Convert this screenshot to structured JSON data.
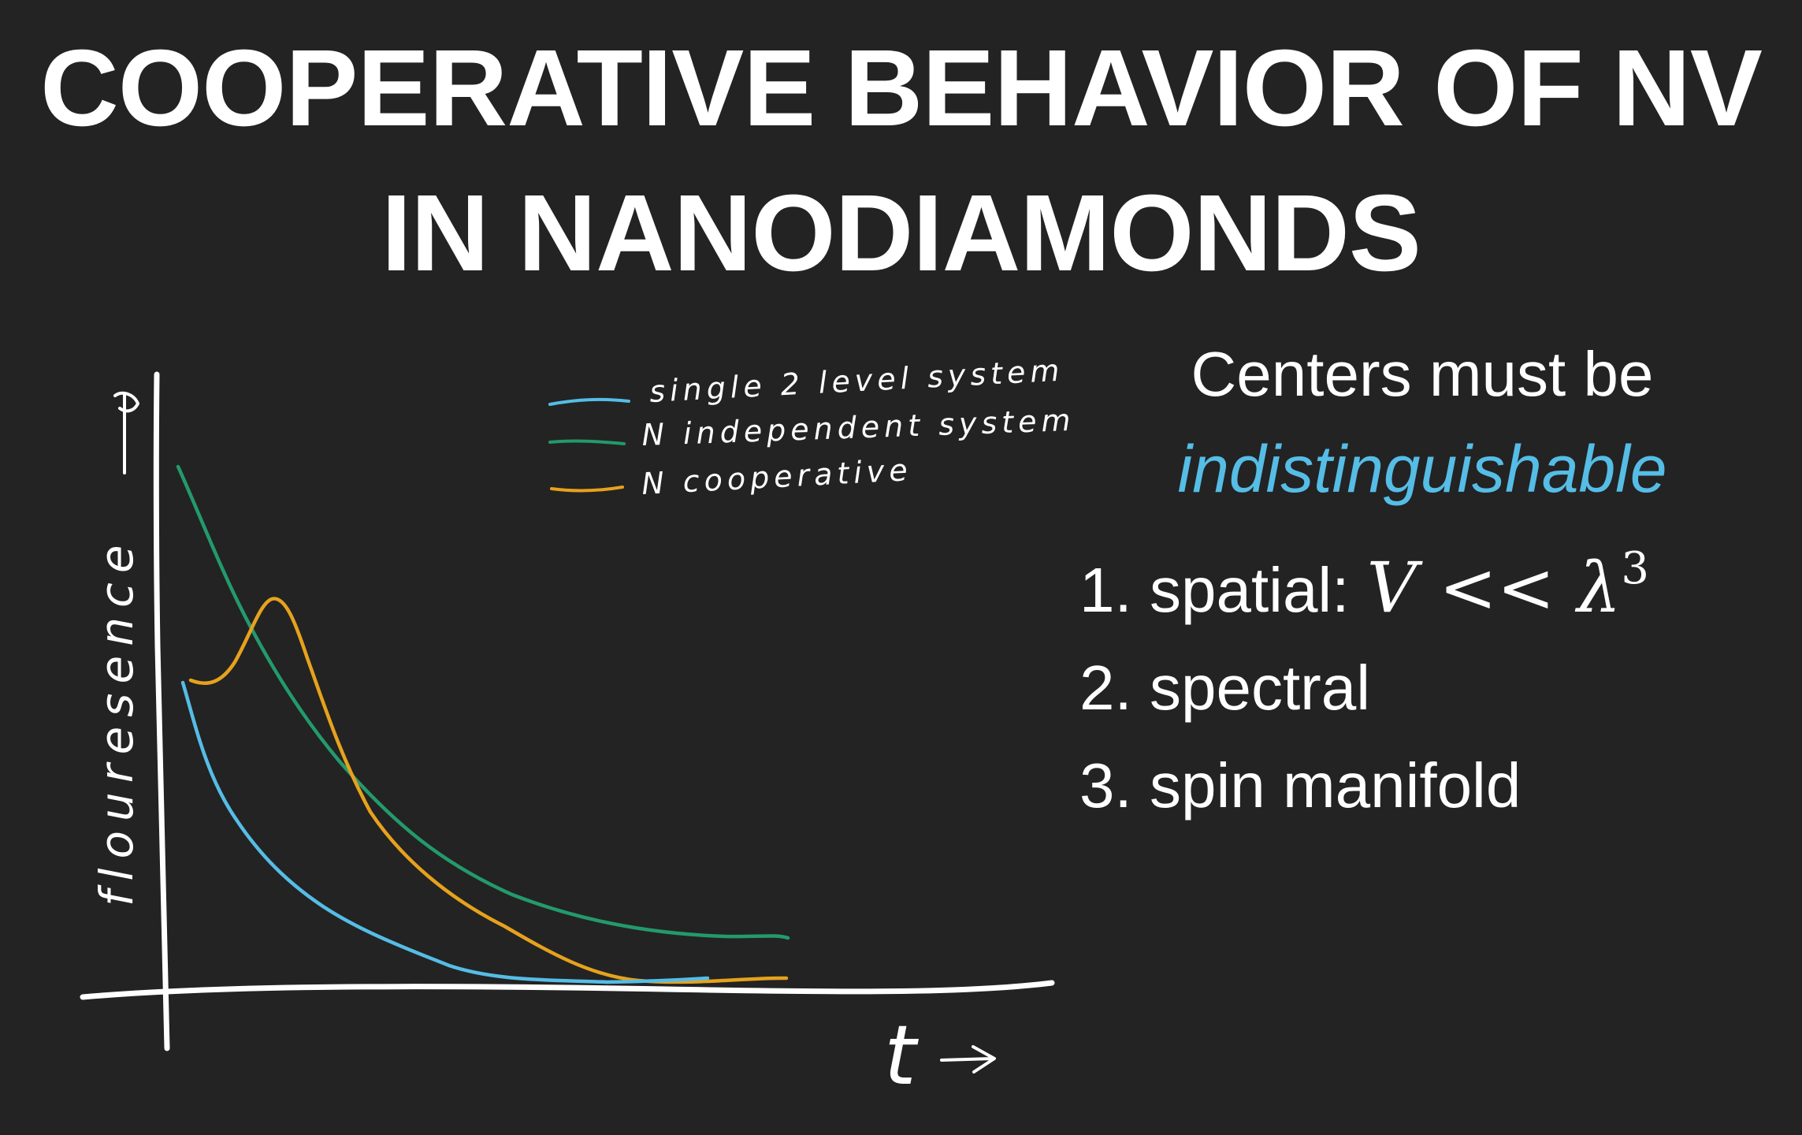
{
  "slide": {
    "title_line1": "COOPERATIVE BEHAVIOR OF NV",
    "title_line2": "IN NANODIAMONDS"
  },
  "sketch": {
    "y_axis_label": "flouresence",
    "x_axis_label": "t",
    "legend": [
      {
        "label": "single 2 level system",
        "color": "#55bde6"
      },
      {
        "label": "N independent systems",
        "color": "#239a6c"
      },
      {
        "label": "N cooperative",
        "color": "#e6a21d"
      }
    ]
  },
  "points": {
    "heading_line1": "Centers must be",
    "heading_line2": "indistinguishable",
    "items": [
      {
        "number": "1.",
        "text": "spatial:",
        "math_main": "V << λ",
        "math_exp": "3"
      },
      {
        "number": "2.",
        "text": "spectral"
      },
      {
        "number": "3.",
        "text": "spin manifold"
      }
    ]
  },
  "colors": {
    "background": "#232323",
    "text": "#ffffff",
    "accent": "#55bde6"
  }
}
